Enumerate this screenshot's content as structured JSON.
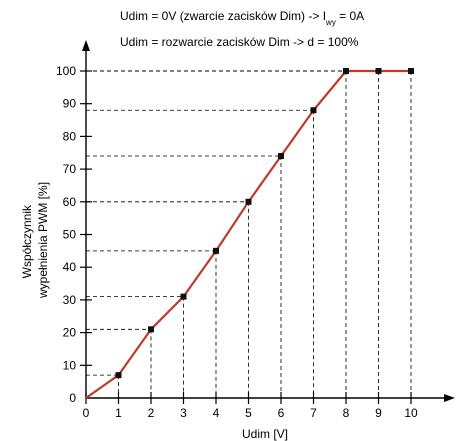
{
  "chart_data": {
    "type": "line",
    "annotations": [
      "Udim = 0V (zwarcie zacisków Dim) -> I",
      "Udim = rozwarcie zacisków Dim -> d = 100%"
    ],
    "annotation_sub": {
      "subscript": "wy",
      "tail": " = 0A"
    },
    "xlabel": "Udim [V]",
    "ylabel_lines": [
      "Współczynnik",
      "wypełnienia PWM [%]"
    ],
    "xlim": [
      0,
      10
    ],
    "ylim": [
      0,
      100
    ],
    "x_ticks": [
      0,
      1,
      2,
      3,
      4,
      5,
      6,
      7,
      8,
      9,
      10
    ],
    "y_ticks": [
      0,
      10,
      20,
      30,
      40,
      50,
      60,
      70,
      80,
      90,
      100
    ],
    "x_tick_labels": [
      "0",
      "1",
      "2",
      "3",
      "4",
      "5",
      "6",
      "7",
      "8",
      "9",
      "10"
    ],
    "y_tick_labels": [
      "0",
      "10",
      "20",
      "30",
      "40",
      "50",
      "60",
      "70",
      "80",
      "90",
      "100"
    ],
    "guide_lines": true,
    "series": [
      {
        "x": [
          0,
          1,
          2,
          3,
          4,
          5,
          6,
          7,
          8,
          9,
          10
        ],
        "y": [
          0,
          7,
          21,
          31,
          45,
          60,
          74,
          88,
          100,
          100,
          100
        ],
        "color": "#c0392b"
      }
    ]
  }
}
